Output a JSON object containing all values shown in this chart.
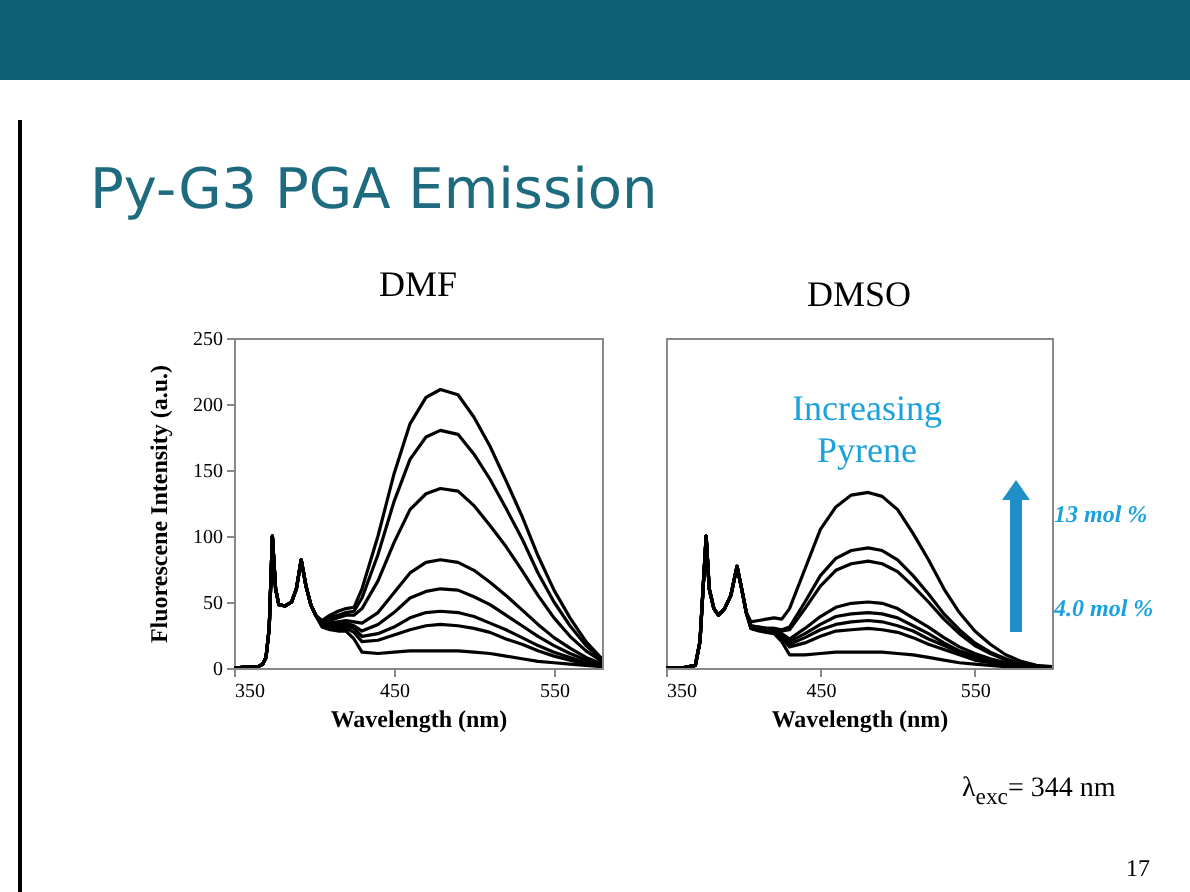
{
  "chart_data": [
    {
      "type": "line",
      "title": "DMF",
      "xlabel": "Wavelength (nm)",
      "ylabel": "Fluorescene Intensity (a.u.)",
      "annotations": [
        "Py-G3 PGA Emission"
      ],
      "x": [
        350,
        360,
        365,
        368,
        370,
        372,
        374,
        376,
        378,
        382,
        386,
        389,
        392,
        395,
        398,
        401,
        405,
        410,
        415,
        420,
        425,
        430,
        440,
        450,
        460,
        470,
        479,
        490,
        500,
        510,
        520,
        530,
        540,
        550,
        560,
        570,
        580
      ],
      "series": [
        {
          "color": "#000000",
          "values": [
            0,
            1,
            1,
            3,
            8,
            30,
            100,
            60,
            48,
            47,
            50,
            60,
            82,
            62,
            48,
            40,
            36,
            40,
            43,
            45,
            46,
            60,
            100,
            147,
            185,
            205,
            211,
            207,
            190,
            168,
            142,
            115,
            85,
            59,
            38,
            20,
            7
          ]
        },
        {
          "color": "#000000",
          "values": [
            0,
            1,
            1,
            3,
            8,
            30,
            100,
            60,
            48,
            47,
            50,
            60,
            82,
            62,
            48,
            40,
            35,
            38,
            40,
            42,
            43,
            53,
            86,
            126,
            158,
            175,
            180,
            177,
            162,
            143,
            121,
            98,
            72,
            50,
            32,
            17,
            6
          ]
        },
        {
          "color": "#000000",
          "values": [
            0,
            1,
            1,
            3,
            8,
            30,
            100,
            60,
            48,
            47,
            50,
            60,
            82,
            62,
            48,
            40,
            34,
            36,
            38,
            40,
            40,
            45,
            66,
            95,
            120,
            132,
            136,
            134,
            123,
            108,
            92,
            74,
            55,
            38,
            24,
            13,
            5
          ]
        },
        {
          "color": "#000000",
          "values": [
            0,
            1,
            1,
            3,
            8,
            30,
            100,
            60,
            48,
            47,
            50,
            60,
            82,
            62,
            48,
            40,
            33,
            34,
            35,
            36,
            35,
            34,
            42,
            57,
            72,
            80,
            82,
            80,
            74,
            65,
            55,
            44,
            33,
            23,
            15,
            8,
            3
          ]
        },
        {
          "color": "#000000",
          "values": [
            0,
            1,
            1,
            3,
            8,
            30,
            100,
            60,
            48,
            47,
            50,
            60,
            82,
            62,
            48,
            40,
            33,
            33,
            33,
            34,
            32,
            28,
            33,
            42,
            53,
            58,
            60,
            59,
            54,
            48,
            40,
            32,
            24,
            17,
            11,
            6,
            2
          ]
        },
        {
          "color": "#000000",
          "values": [
            0,
            1,
            1,
            3,
            8,
            30,
            100,
            60,
            48,
            47,
            50,
            60,
            82,
            62,
            48,
            40,
            33,
            32,
            32,
            32,
            30,
            24,
            26,
            31,
            38,
            42,
            43,
            42,
            39,
            34,
            29,
            23,
            17,
            12,
            8,
            4,
            2
          ]
        },
        {
          "color": "#000000",
          "values": [
            0,
            1,
            1,
            3,
            8,
            30,
            100,
            60,
            48,
            47,
            50,
            60,
            82,
            62,
            48,
            40,
            32,
            31,
            30,
            30,
            27,
            20,
            21,
            25,
            29,
            32,
            33,
            32,
            30,
            27,
            22,
            18,
            13,
            9,
            6,
            3,
            1
          ]
        },
        {
          "color": "#000000",
          "values": [
            0,
            1,
            1,
            3,
            8,
            30,
            100,
            60,
            48,
            47,
            50,
            60,
            82,
            62,
            48,
            40,
            31,
            29,
            28,
            28,
            22,
            12,
            11,
            12,
            13,
            13,
            13,
            13,
            12,
            11,
            9,
            7,
            5,
            4,
            3,
            2,
            1
          ]
        }
      ],
      "xlim": [
        350,
        580
      ],
      "xticks": [
        350,
        450,
        550
      ],
      "ylim": [
        0,
        250
      ],
      "yticks": [
        0,
        50,
        100,
        150,
        200,
        250
      ]
    },
    {
      "type": "line",
      "title": "DMSO",
      "xlabel": "Wavelength (nm)",
      "annotations": [
        "Increasing Pyrene",
        "13 mol %",
        "4.0 mol %",
        "λ$_{exc}$= 344 nm",
        "17"
      ],
      "x": [
        350,
        360,
        365,
        369,
        372,
        374,
        376,
        378,
        381,
        384,
        388,
        392,
        396,
        399,
        402,
        405,
        410,
        415,
        420,
        425,
        430,
        440,
        450,
        460,
        470,
        481,
        490,
        500,
        510,
        520,
        530,
        540,
        550,
        560,
        570,
        580,
        590,
        600
      ],
      "series": [
        {
          "color": "#000000",
          "values": [
            0,
            0,
            1,
            2,
            20,
            60,
            100,
            60,
            45,
            40,
            45,
            55,
            77,
            60,
            42,
            35,
            36,
            37,
            38,
            37,
            45,
            75,
            105,
            122,
            131,
            133,
            130,
            120,
            102,
            82,
            60,
            42,
            28,
            18,
            10,
            5,
            2,
            1
          ]
        },
        {
          "color": "#000000",
          "values": [
            0,
            0,
            1,
            2,
            20,
            60,
            100,
            60,
            45,
            40,
            45,
            55,
            77,
            60,
            42,
            32,
            31,
            30,
            30,
            29,
            31,
            50,
            70,
            83,
            89,
            91,
            89,
            82,
            70,
            56,
            41,
            29,
            19,
            12,
            7,
            3,
            1,
            0
          ]
        },
        {
          "color": "#000000",
          "values": [
            0,
            0,
            1,
            2,
            20,
            60,
            100,
            60,
            45,
            40,
            45,
            55,
            77,
            60,
            42,
            32,
            31,
            30,
            30,
            28,
            29,
            45,
            62,
            74,
            79,
            81,
            79,
            73,
            62,
            50,
            37,
            26,
            17,
            11,
            6,
            3,
            1,
            0
          ]
        },
        {
          "color": "#000000",
          "values": [
            0,
            0,
            1,
            2,
            20,
            60,
            100,
            60,
            45,
            40,
            45,
            55,
            77,
            60,
            42,
            31,
            30,
            29,
            29,
            26,
            22,
            30,
            39,
            46,
            49,
            50,
            49,
            45,
            38,
            31,
            23,
            16,
            11,
            7,
            4,
            2,
            1,
            0
          ]
        },
        {
          "color": "#000000",
          "values": [
            0,
            0,
            1,
            2,
            20,
            60,
            100,
            60,
            45,
            40,
            45,
            55,
            77,
            60,
            42,
            31,
            30,
            29,
            28,
            25,
            20,
            26,
            33,
            39,
            41,
            42,
            41,
            38,
            32,
            26,
            19,
            13,
            9,
            6,
            3,
            2,
            1,
            0
          ]
        },
        {
          "color": "#000000",
          "values": [
            0,
            0,
            1,
            2,
            20,
            60,
            100,
            60,
            45,
            40,
            45,
            55,
            77,
            60,
            42,
            30,
            29,
            28,
            28,
            24,
            18,
            23,
            29,
            33,
            35,
            36,
            35,
            32,
            28,
            22,
            17,
            12,
            8,
            5,
            3,
            1,
            0,
            0
          ]
        },
        {
          "color": "#000000",
          "values": [
            0,
            0,
            1,
            2,
            20,
            60,
            100,
            60,
            45,
            40,
            45,
            55,
            77,
            60,
            42,
            30,
            29,
            28,
            27,
            23,
            16,
            19,
            24,
            28,
            29,
            30,
            29,
            27,
            23,
            18,
            14,
            10,
            6,
            4,
            2,
            1,
            0,
            0
          ]
        },
        {
          "color": "#000000",
          "values": [
            0,
            0,
            1,
            2,
            20,
            60,
            100,
            60,
            45,
            40,
            45,
            55,
            77,
            60,
            42,
            30,
            28,
            27,
            26,
            20,
            10,
            10,
            11,
            12,
            12,
            12,
            12,
            11,
            10,
            8,
            6,
            4,
            3,
            2,
            1,
            1,
            0,
            0
          ]
        }
      ],
      "xlim": [
        350,
        600
      ],
      "xticks": [
        350,
        450,
        550
      ],
      "ylim": [
        0,
        250
      ],
      "tick_labels": "x"
    }
  ]
}
